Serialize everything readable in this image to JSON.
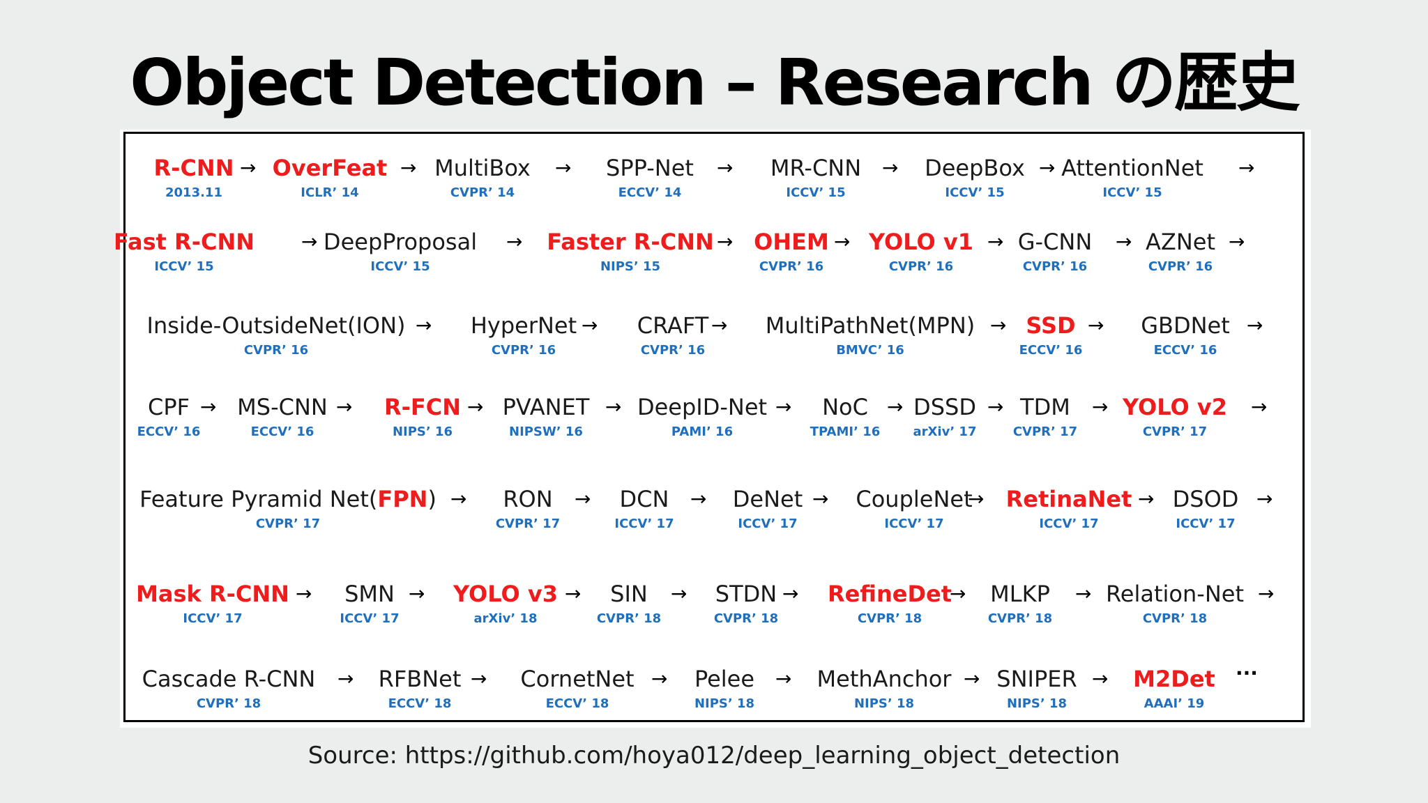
{
  "title": "Object Detection – Research の歴史",
  "source": "Source: https://github.com/hoya012/deep_learning_object_detection",
  "arrow_glyph": "→",
  "colors": {
    "background": "#ebeeed",
    "highlight": "#ee1c1c",
    "venue": "#1f6fbd",
    "text": "#1a1a1a"
  },
  "diagram": {
    "nodes": [
      {
        "name": "R-CNN",
        "venue": "2013.11",
        "highlight": true
      },
      {
        "name": "OverFeat",
        "venue": "ICLR’ 14",
        "highlight": true
      },
      {
        "name": "MultiBox",
        "venue": "CVPR’ 14",
        "highlight": false
      },
      {
        "name": "SPP-Net",
        "venue": "ECCV’ 14",
        "highlight": false
      },
      {
        "name": "MR-CNN",
        "venue": "ICCV’ 15",
        "highlight": false
      },
      {
        "name": "DeepBox",
        "venue": "ICCV’ 15",
        "highlight": false
      },
      {
        "name": "AttentionNet",
        "venue": "ICCV’ 15",
        "highlight": false
      },
      {
        "name": "Fast R-CNN",
        "venue": "ICCV’ 15",
        "highlight": true
      },
      {
        "name": "DeepProposal",
        "venue": "ICCV’ 15",
        "highlight": false
      },
      {
        "name": "Faster R-CNN",
        "venue": "NIPS’ 15",
        "highlight": true
      },
      {
        "name": "OHEM",
        "venue": "CVPR’ 16",
        "highlight": true
      },
      {
        "name": "YOLO v1",
        "venue": "CVPR’ 16",
        "highlight": true
      },
      {
        "name": "G-CNN",
        "venue": "CVPR’ 16",
        "highlight": false
      },
      {
        "name": "AZNet",
        "venue": "CVPR’ 16",
        "highlight": false
      },
      {
        "name": "Inside-OutsideNet(ION)",
        "venue": "CVPR’ 16",
        "highlight": false
      },
      {
        "name": "HyperNet",
        "venue": "CVPR’ 16",
        "highlight": false
      },
      {
        "name": "CRAFT",
        "venue": "CVPR’ 16",
        "highlight": false
      },
      {
        "name": "MultiPathNet(MPN)",
        "venue": "BMVC’ 16",
        "highlight": false
      },
      {
        "name": "SSD",
        "venue": "ECCV’ 16",
        "highlight": true
      },
      {
        "name": "GBDNet",
        "venue": "ECCV’ 16",
        "highlight": false
      },
      {
        "name": "CPF",
        "venue": "ECCV’ 16",
        "highlight": false
      },
      {
        "name": "MS-CNN",
        "venue": "ECCV’ 16",
        "highlight": false
      },
      {
        "name": "R-FCN",
        "venue": "NIPS’ 16",
        "highlight": true
      },
      {
        "name": "PVANET",
        "venue": "NIPSW’ 16",
        "highlight": false
      },
      {
        "name": "DeepID-Net",
        "venue": "PAMI’ 16",
        "highlight": false
      },
      {
        "name": "NoC",
        "venue": "TPAMI’ 16",
        "highlight": false
      },
      {
        "name": "DSSD",
        "venue": "arXiv’ 17",
        "highlight": false
      },
      {
        "name": "TDM",
        "venue": "CVPR’ 17",
        "highlight": false
      },
      {
        "name": "YOLO v2",
        "venue": "CVPR’ 17",
        "highlight": true
      },
      {
        "name": "Feature Pyramid Net(",
        "name_red": "FPN",
        "name_after": ")",
        "venue": "CVPR’ 17",
        "highlight": false
      },
      {
        "name": "RON",
        "venue": "CVPR’ 17",
        "highlight": false
      },
      {
        "name": "DCN",
        "venue": "ICCV’ 17",
        "highlight": false
      },
      {
        "name": "DeNet",
        "venue": "ICCV’ 17",
        "highlight": false
      },
      {
        "name": "CoupleNet",
        "venue": "ICCV’ 17",
        "highlight": false
      },
      {
        "name": "RetinaNet",
        "venue": "ICCV’ 17",
        "highlight": true
      },
      {
        "name": "DSOD",
        "venue": "ICCV’ 17",
        "highlight": false
      },
      {
        "name": "Mask R-CNN",
        "venue": "ICCV’ 17",
        "highlight": true
      },
      {
        "name": "SMN",
        "venue": "ICCV’ 17",
        "highlight": false
      },
      {
        "name": "YOLO v3",
        "venue": "arXiv’ 18",
        "highlight": true
      },
      {
        "name": "SIN",
        "venue": "CVPR’ 18",
        "highlight": false
      },
      {
        "name": "STDN",
        "venue": "CVPR’ 18",
        "highlight": false
      },
      {
        "name": "RefineDet",
        "venue": "CVPR’ 18",
        "highlight": true
      },
      {
        "name": "MLKP",
        "venue": "CVPR’ 18",
        "highlight": false
      },
      {
        "name": "Relation-Net",
        "venue": "CVPR’ 18",
        "highlight": false
      },
      {
        "name": "Cascade R-CNN",
        "venue": "CVPR’ 18",
        "highlight": false
      },
      {
        "name": "RFBNet",
        "venue": "ECCV’ 18",
        "highlight": false
      },
      {
        "name": "CornetNet",
        "venue": "ECCV’ 18",
        "highlight": false
      },
      {
        "name": "Pelee",
        "venue": "NIPS’ 18",
        "highlight": false
      },
      {
        "name": "MethAnchor",
        "venue": "NIPS’ 18",
        "highlight": false
      },
      {
        "name": "SNIPER",
        "venue": "NIPS’ 18",
        "highlight": false
      },
      {
        "name": "M2Det",
        "venue": "AAAI’ 19",
        "highlight": true
      }
    ],
    "ellipsis": "···"
  }
}
